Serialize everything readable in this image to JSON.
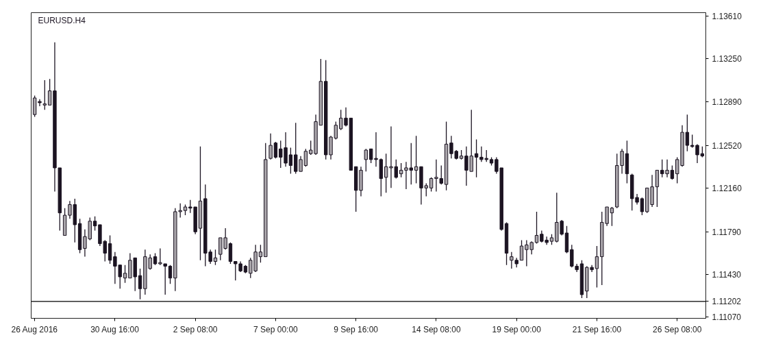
{
  "chart_data": {
    "type": "candlestick",
    "title": "EURUSD.H4",
    "categories": [
      "26 Aug 2016",
      null,
      null,
      null,
      null,
      null,
      null,
      null,
      null,
      null,
      null,
      null,
      null,
      null,
      null,
      null,
      "30 Aug 16:00",
      null,
      null,
      null,
      null,
      null,
      null,
      null,
      null,
      null,
      null,
      null,
      null,
      null,
      null,
      null,
      "2 Sep 08:00",
      null,
      null,
      null,
      null,
      null,
      null,
      null,
      null,
      null,
      null,
      null,
      null,
      null,
      null,
      null,
      "7 Sep 00:00",
      null,
      null,
      null,
      null,
      null,
      null,
      null,
      null,
      null,
      null,
      null,
      null,
      null,
      null,
      null,
      "9 Sep 16:00",
      null,
      null,
      null,
      null,
      null,
      null,
      null,
      null,
      null,
      null,
      null,
      null,
      null,
      null,
      null,
      "14 Sep 08:00",
      null,
      null,
      null,
      null,
      null,
      null,
      null,
      null,
      null,
      null,
      null,
      null,
      null,
      null,
      null,
      "19 Sep 00:00",
      null,
      null,
      null,
      null,
      null,
      null,
      null,
      null,
      null,
      null,
      null,
      null,
      null,
      null,
      null,
      "21 Sep 16:00",
      null,
      null,
      null,
      null,
      null,
      null,
      null,
      null,
      null,
      null,
      null,
      null,
      null,
      null,
      null,
      "26 Sep 08:00",
      null,
      null,
      null,
      null,
      null
    ],
    "ohlc": [
      [
        1.1278,
        1.1294,
        1.1276,
        1.1292
      ],
      [
        1.1289,
        1.1291,
        1.1285,
        1.1288
      ],
      [
        1.1286,
        1.1307,
        1.1282,
        1.1287
      ],
      [
        1.1286,
        1.1308,
        1.1286,
        1.1298
      ],
      [
        1.1298,
        1.1339,
        1.1213,
        1.1233
      ],
      [
        1.1233,
        1.1233,
        1.118,
        1.1195
      ],
      [
        1.1176,
        1.1199,
        1.1176,
        1.1193
      ],
      [
        1.1193,
        1.1205,
        1.119,
        1.1202
      ],
      [
        1.1202,
        1.1207,
        1.117,
        1.1185
      ],
      [
        1.1186,
        1.119,
        1.1161,
        1.1164
      ],
      [
        1.1165,
        1.1181,
        1.1158,
        1.1175
      ],
      [
        1.1173,
        1.1191,
        1.1172,
        1.1188
      ],
      [
        1.1188,
        1.1192,
        1.118,
        1.1184
      ],
      [
        1.1185,
        1.1185,
        1.1167,
        1.1169
      ],
      [
        1.1171,
        1.1172,
        1.1154,
        1.1161
      ],
      [
        1.1169,
        1.1176,
        1.1152,
        1.1155
      ],
      [
        1.1158,
        1.1162,
        1.1135,
        1.115
      ],
      [
        1.1151,
        1.1151,
        1.1131,
        1.1141
      ],
      [
        1.114,
        1.1151,
        1.1136,
        1.1144
      ],
      [
        1.114,
        1.1161,
        1.114,
        1.1155
      ],
      [
        1.1157,
        1.1157,
        1.1129,
        1.1141
      ],
      [
        1.1142,
        1.1148,
        1.1122,
        1.1131
      ],
      [
        1.1131,
        1.1164,
        1.1126,
        1.1158
      ],
      [
        1.1148,
        1.116,
        1.1147,
        1.1157
      ],
      [
        1.1158,
        1.1161,
        1.1151,
        1.1152
      ],
      [
        1.1152,
        1.1165,
        1.1151,
        1.1153
      ],
      [
        1.1152,
        1.1152,
        1.1126,
        1.115
      ],
      [
        1.115,
        1.1151,
        1.1135,
        1.114
      ],
      [
        1.114,
        1.1199,
        1.1129,
        1.1196
      ],
      [
        1.1196,
        1.1203,
        1.1191,
        1.1197
      ],
      [
        1.1197,
        1.1202,
        1.1193,
        1.12
      ],
      [
        1.12,
        1.1206,
        1.1195,
        1.1199
      ],
      [
        1.12,
        1.12,
        1.1177,
        1.1179
      ],
      [
        1.1182,
        1.1251,
        1.1155,
        1.1205
      ],
      [
        1.1207,
        1.1219,
        1.115,
        1.1161
      ],
      [
        1.1162,
        1.1164,
        1.1152,
        1.1154
      ],
      [
        1.1154,
        1.1164,
        1.1151,
        1.1157
      ],
      [
        1.116,
        1.1174,
        1.1155,
        1.1174
      ],
      [
        1.1165,
        1.1182,
        1.1164,
        1.1174
      ],
      [
        1.1169,
        1.117,
        1.1152,
        1.1154
      ],
      [
        1.1154,
        1.1154,
        1.1138,
        1.1152
      ],
      [
        1.1152,
        1.1154,
        1.1145,
        1.1146
      ],
      [
        1.115,
        1.1151,
        1.1144,
        1.1145
      ],
      [
        1.1144,
        1.1157,
        1.114,
        1.1155
      ],
      [
        1.1146,
        1.1168,
        1.1145,
        1.1162
      ],
      [
        1.1158,
        1.1168,
        1.1153,
        1.1162
      ],
      [
        1.1158,
        1.1254,
        1.1158,
        1.124
      ],
      [
        1.1241,
        1.1262,
        1.124,
        1.1252
      ],
      [
        1.1254,
        1.1255,
        1.1241,
        1.1242
      ],
      [
        1.1249,
        1.1256,
        1.1233,
        1.1242
      ],
      [
        1.125,
        1.1263,
        1.1234,
        1.1237
      ],
      [
        1.1244,
        1.125,
        1.1228,
        1.1235
      ],
      [
        1.1244,
        1.1271,
        1.1228,
        1.123
      ],
      [
        1.123,
        1.1243,
        1.123,
        1.124
      ],
      [
        1.1235,
        1.1249,
        1.1234,
        1.1247
      ],
      [
        1.1245,
        1.1256,
        1.1244,
        1.1248
      ],
      [
        1.1245,
        1.1278,
        1.1244,
        1.1272
      ],
      [
        1.1269,
        1.1325,
        1.1269,
        1.1306
      ],
      [
        1.1306,
        1.1324,
        1.124,
        1.1244
      ],
      [
        1.1244,
        1.126,
        1.124,
        1.1259
      ],
      [
        1.1258,
        1.1272,
        1.1257,
        1.1269
      ],
      [
        1.1266,
        1.1282,
        1.1265,
        1.1275
      ],
      [
        1.1275,
        1.1284,
        1.1268,
        1.1269
      ],
      [
        1.1275,
        1.1275,
        1.1231,
        1.1231
      ],
      [
        1.1234,
        1.1234,
        1.1196,
        1.1214
      ],
      [
        1.1214,
        1.1234,
        1.1209,
        1.1231
      ],
      [
        1.124,
        1.1249,
        1.123,
        1.1248
      ],
      [
        1.1249,
        1.1249,
        1.1237,
        1.124
      ],
      [
        1.1241,
        1.1263,
        1.1234,
        1.124
      ],
      [
        1.124,
        1.1241,
        1.1209,
        1.1224
      ],
      [
        1.1225,
        1.1245,
        1.1212,
        1.1234
      ],
      [
        1.1233,
        1.1268,
        1.1216,
        1.1234
      ],
      [
        1.1234,
        1.124,
        1.1224,
        1.1225
      ],
      [
        1.1228,
        1.1237,
        1.1225,
        1.1231
      ],
      [
        1.1231,
        1.1238,
        1.1215,
        1.1233
      ],
      [
        1.1233,
        1.1254,
        1.1219,
        1.1231
      ],
      [
        1.1231,
        1.126,
        1.122,
        1.1234
      ],
      [
        1.1234,
        1.1234,
        1.1202,
        1.1216
      ],
      [
        1.1216,
        1.122,
        1.1209,
        1.1218
      ],
      [
        1.1216,
        1.1225,
        1.1213,
        1.1224
      ],
      [
        1.1224,
        1.124,
        1.1213,
        1.1225
      ],
      [
        1.1224,
        1.1235,
        1.1219,
        1.122
      ],
      [
        1.1219,
        1.1272,
        1.1214,
        1.1253
      ],
      [
        1.1254,
        1.126,
        1.1241,
        1.1245
      ],
      [
        1.1247,
        1.1248,
        1.124,
        1.1241
      ],
      [
        1.1241,
        1.1248,
        1.124,
        1.1243
      ],
      [
        1.1243,
        1.1251,
        1.1218,
        1.1231
      ],
      [
        1.123,
        1.1282,
        1.123,
        1.1243
      ],
      [
        1.1245,
        1.1257,
        1.1225,
        1.1242
      ],
      [
        1.1242,
        1.1251,
        1.1238,
        1.124
      ],
      [
        1.1241,
        1.1248,
        1.1238,
        1.124
      ],
      [
        1.124,
        1.1242,
        1.1235,
        1.1237
      ],
      [
        1.124,
        1.1242,
        1.1228,
        1.123
      ],
      [
        1.1233,
        1.1233,
        1.118,
        1.1181
      ],
      [
        1.1186,
        1.1187,
        1.1151,
        1.1161
      ],
      [
        1.1155,
        1.1162,
        1.1148,
        1.1158
      ],
      [
        1.1155,
        1.1157,
        1.1149,
        1.1152
      ],
      [
        1.1155,
        1.1172,
        1.1155,
        1.1167
      ],
      [
        1.1164,
        1.1172,
        1.115,
        1.1168
      ],
      [
        1.1164,
        1.1171,
        1.116,
        1.117
      ],
      [
        1.117,
        1.1196,
        1.1169,
        1.1176
      ],
      [
        1.1177,
        1.118,
        1.117,
        1.1171
      ],
      [
        1.1172,
        1.1175,
        1.1168,
        1.117
      ],
      [
        1.1171,
        1.1177,
        1.1168,
        1.1174
      ],
      [
        1.1171,
        1.1212,
        1.117,
        1.1187
      ],
      [
        1.1188,
        1.1189,
        1.1176,
        1.1177
      ],
      [
        1.1178,
        1.1184,
        1.1161,
        1.1162
      ],
      [
        1.1164,
        1.1168,
        1.1149,
        1.115
      ],
      [
        1.115,
        1.1152,
        1.1145,
        1.1147
      ],
      [
        1.1152,
        1.1155,
        1.1123,
        1.1126
      ],
      [
        1.1129,
        1.115,
        1.1123,
        1.1149
      ],
      [
        1.1149,
        1.1151,
        1.1145,
        1.1147
      ],
      [
        1.1148,
        1.1167,
        1.1132,
        1.1158
      ],
      [
        1.1158,
        1.1196,
        1.1134,
        1.1187
      ],
      [
        1.1186,
        1.12,
        1.1184,
        1.12
      ],
      [
        1.1195,
        1.12,
        1.1184,
        1.1199
      ],
      [
        1.12,
        1.1245,
        1.1199,
        1.1235
      ],
      [
        1.1235,
        1.1249,
        1.1228,
        1.1247
      ],
      [
        1.1245,
        1.1256,
        1.122,
        1.1228
      ],
      [
        1.1227,
        1.1228,
        1.1197,
        1.1207
      ],
      [
        1.1208,
        1.1211,
        1.1202,
        1.1204
      ],
      [
        1.1207,
        1.1208,
        1.1193,
        1.1196
      ],
      [
        1.1196,
        1.1216,
        1.1195,
        1.1216
      ],
      [
        1.1202,
        1.1227,
        1.12,
        1.1217
      ],
      [
        1.1217,
        1.1231,
        1.12,
        1.1231
      ],
      [
        1.1231,
        1.124,
        1.1225,
        1.1228
      ],
      [
        1.1228,
        1.124,
        1.1225,
        1.1231
      ],
      [
        1.1231,
        1.1235,
        1.1223,
        1.1224
      ],
      [
        1.1228,
        1.1242,
        1.122,
        1.124
      ],
      [
        1.1235,
        1.1269,
        1.1234,
        1.1263
      ],
      [
        1.1263,
        1.1278,
        1.1247,
        1.1252
      ],
      [
        1.1252,
        1.1261,
        1.125,
        1.1251
      ],
      [
        1.1252,
        1.1253,
        1.1237,
        1.1244
      ],
      [
        1.1245,
        1.1251,
        1.1242,
        1.1243
      ]
    ],
    "ylim": [
      1.1106,
      1.1364
    ],
    "yticks": [
      {
        "value": 1.1361,
        "label": "1.13610"
      },
      {
        "value": 1.1325,
        "label": "1.13250"
      },
      {
        "value": 1.1289,
        "label": "1.12890"
      },
      {
        "value": 1.1252,
        "label": "1.12520"
      },
      {
        "value": 1.1216,
        "label": "1.12160"
      },
      {
        "value": 1.1179,
        "label": "1.11790"
      },
      {
        "value": 1.1143,
        "label": "1.11430"
      },
      {
        "value": 1.1107,
        "label": "1.11070"
      }
    ],
    "ref_lines": [
      {
        "axis": "y",
        "value": 1.11202,
        "label": "1.11202",
        "color": "#000000"
      }
    ]
  }
}
